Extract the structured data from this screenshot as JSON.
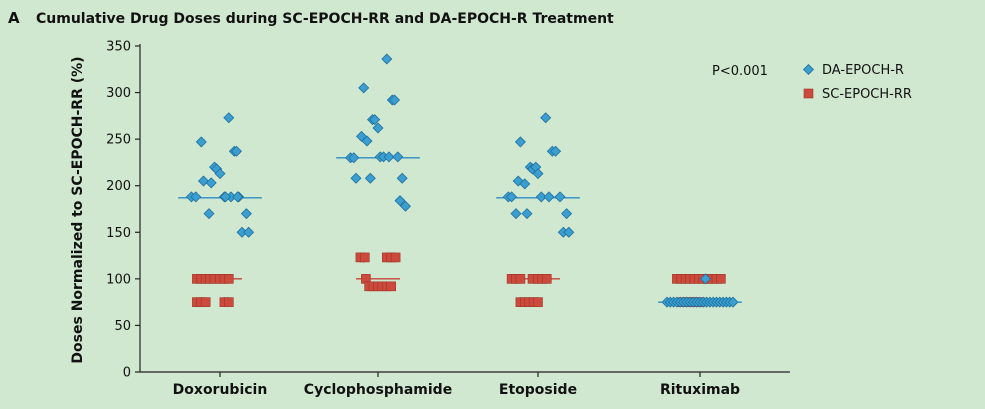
{
  "panel_letter": "A",
  "colors": {
    "background": "#d1e8d0",
    "da_marker": "#3a9fd0",
    "da_stroke": "#1f6f9c",
    "sc_marker": "#cc4a3c",
    "sc_stroke": "#9e3328",
    "da_median": "#2b8cc4",
    "sc_median": "#c4453a"
  },
  "chart_data": {
    "type": "scatter",
    "title": "Cumulative Drug Doses during SC-EPOCH-RR and DA-EPOCH-R Treatment",
    "ylabel": "Doses Normalized to SC-EPOCH-RR (%)",
    "xlabel": "",
    "ylim": [
      0,
      350
    ],
    "yticks": [
      0,
      50,
      100,
      150,
      200,
      250,
      300,
      350
    ],
    "categories": [
      "Doxorubicin",
      "Cyclophosphamide",
      "Etoposide",
      "Rituximab"
    ],
    "annotation": "P<0.001",
    "legend_position": "top-right",
    "series": [
      {
        "name": "DA-EPOCH-R",
        "marker": "diamond",
        "groups": [
          {
            "category": "Doxorubicin",
            "median": 187,
            "points": [
              [
                -0.26,
                188
              ],
              [
                -0.22,
                188
              ],
              [
                -0.15,
                205
              ],
              [
                -0.1,
                170
              ],
              [
                -0.08,
                203
              ],
              [
                -0.05,
                220
              ],
              [
                -0.03,
                218
              ],
              [
                0.0,
                213
              ],
              [
                -0.17,
                247
              ],
              [
                0.04,
                188
              ],
              [
                0.08,
                273
              ],
              [
                0.1,
                188
              ],
              [
                0.13,
                237
              ],
              [
                0.15,
                237
              ],
              [
                0.17,
                188
              ],
              [
                0.2,
                150
              ],
              [
                0.24,
                170
              ],
              [
                0.26,
                150
              ],
              [
                0.16,
                188
              ],
              [
                0.05,
                188
              ]
            ]
          },
          {
            "category": "Cyclophosphamide",
            "median": 230,
            "points": [
              [
                -0.25,
                230
              ],
              [
                -0.22,
                230
              ],
              [
                -0.2,
                208
              ],
              [
                -0.15,
                253
              ],
              [
                -0.13,
                305
              ],
              [
                -0.1,
                248
              ],
              [
                -0.07,
                208
              ],
              [
                -0.05,
                271
              ],
              [
                -0.03,
                271
              ],
              [
                0.0,
                262
              ],
              [
                0.02,
                231
              ],
              [
                0.05,
                231
              ],
              [
                0.08,
                336
              ],
              [
                0.1,
                231
              ],
              [
                0.13,
                292
              ],
              [
                0.15,
                292
              ],
              [
                0.18,
                231
              ],
              [
                0.2,
                184
              ],
              [
                0.22,
                208
              ],
              [
                0.25,
                178
              ]
            ]
          },
          {
            "category": "Etoposide",
            "median": 187,
            "points": [
              [
                -0.27,
                188
              ],
              [
                -0.24,
                188
              ],
              [
                -0.2,
                170
              ],
              [
                -0.18,
                205
              ],
              [
                -0.16,
                247
              ],
              [
                -0.12,
                202
              ],
              [
                -0.1,
                170
              ],
              [
                -0.07,
                220
              ],
              [
                -0.05,
                218
              ],
              [
                -0.02,
                220
              ],
              [
                0.0,
                213
              ],
              [
                0.03,
                188
              ],
              [
                0.07,
                273
              ],
              [
                0.1,
                188
              ],
              [
                0.13,
                237
              ],
              [
                0.16,
                237
              ],
              [
                0.2,
                188
              ],
              [
                0.23,
                150
              ],
              [
                0.26,
                170
              ],
              [
                0.28,
                150
              ]
            ]
          },
          {
            "category": "Rituximab",
            "median": 75,
            "points": [
              [
                -0.3,
                75
              ],
              [
                -0.27,
                75
              ],
              [
                -0.24,
                75
              ],
              [
                -0.21,
                75
              ],
              [
                -0.18,
                75
              ],
              [
                -0.15,
                75
              ],
              [
                -0.12,
                75
              ],
              [
                -0.09,
                75
              ],
              [
                -0.06,
                75
              ],
              [
                -0.03,
                75
              ],
              [
                0.0,
                75
              ],
              [
                0.03,
                75
              ],
              [
                0.06,
                75
              ],
              [
                0.09,
                75
              ],
              [
                0.12,
                75
              ],
              [
                0.15,
                75
              ],
              [
                0.18,
                75
              ],
              [
                0.21,
                75
              ],
              [
                0.24,
                75
              ],
              [
                0.27,
                75
              ],
              [
                0.3,
                75
              ],
              [
                0.05,
                100
              ]
            ]
          }
        ]
      },
      {
        "name": "SC-EPOCH-RR",
        "marker": "square",
        "groups": [
          {
            "category": "Doxorubicin",
            "median": 100,
            "points": [
              [
                -0.21,
                100
              ],
              [
                -0.17,
                100
              ],
              [
                -0.13,
                100
              ],
              [
                -0.09,
                100
              ],
              [
                -0.05,
                100
              ],
              [
                0.0,
                100
              ],
              [
                0.04,
                100
              ],
              [
                0.08,
                100
              ],
              [
                -0.21,
                75
              ],
              [
                -0.17,
                75
              ],
              [
                -0.13,
                75
              ],
              [
                0.04,
                75
              ],
              [
                0.08,
                75
              ]
            ]
          },
          {
            "category": "Cyclophosphamide",
            "median": 100,
            "points": [
              [
                -0.16,
                123
              ],
              [
                -0.12,
                123
              ],
              [
                0.08,
                123
              ],
              [
                0.12,
                123
              ],
              [
                0.16,
                123
              ],
              [
                -0.11,
                100
              ],
              [
                -0.08,
                92
              ],
              [
                -0.04,
                92
              ],
              [
                0.0,
                92
              ],
              [
                0.04,
                92
              ],
              [
                0.08,
                92
              ],
              [
                0.12,
                92
              ]
            ]
          },
          {
            "category": "Etoposide",
            "median": 100,
            "points": [
              [
                -0.24,
                100
              ],
              [
                -0.2,
                100
              ],
              [
                -0.16,
                100
              ],
              [
                -0.05,
                100
              ],
              [
                0.0,
                100
              ],
              [
                0.04,
                100
              ],
              [
                0.08,
                100
              ],
              [
                -0.16,
                75
              ],
              [
                -0.12,
                75
              ],
              [
                -0.08,
                75
              ],
              [
                -0.04,
                75
              ],
              [
                0.0,
                75
              ]
            ]
          },
          {
            "category": "Rituximab",
            "median": 100,
            "points": [
              [
                -0.21,
                100
              ],
              [
                -0.17,
                100
              ],
              [
                -0.13,
                100
              ],
              [
                -0.09,
                100
              ],
              [
                -0.05,
                100
              ],
              [
                -0.01,
                100
              ],
              [
                0.03,
                100
              ],
              [
                0.07,
                100
              ],
              [
                0.11,
                100
              ],
              [
                0.15,
                100
              ],
              [
                0.19,
                100
              ],
              [
                -0.16,
                75
              ],
              [
                -0.12,
                75
              ],
              [
                -0.08,
                75
              ],
              [
                -0.04,
                75
              ],
              [
                0.0,
                75
              ]
            ]
          }
        ]
      }
    ]
  }
}
